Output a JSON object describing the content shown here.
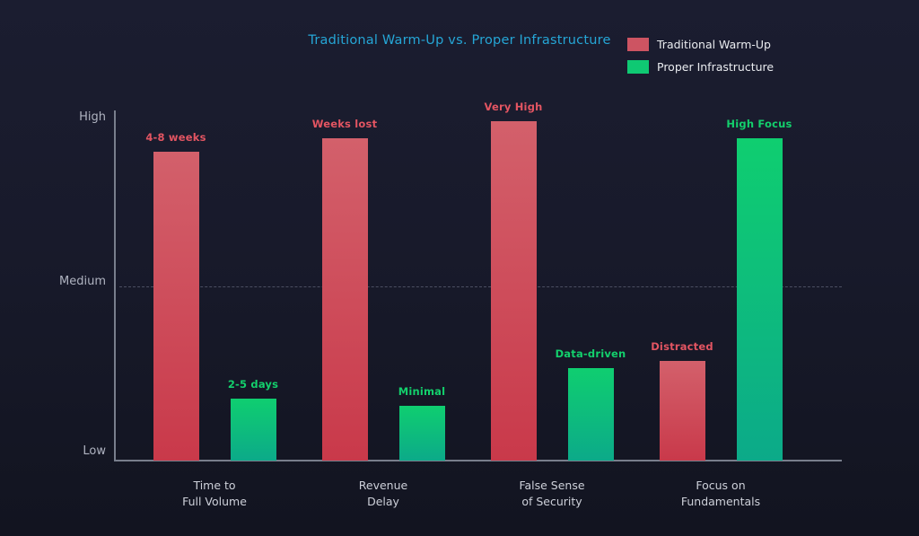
{
  "title": "Traditional Warm-Up vs. Proper Infrastructure",
  "legend": [
    {
      "label": "Traditional Warm-Up",
      "color": "#cd5462"
    },
    {
      "label": "Proper Infrastructure",
      "color": "#0fc973"
    }
  ],
  "colors": {
    "title": "#25a6d6",
    "background_top": "#1b1d30",
    "background_bottom": "#121420",
    "axis": "#787e8c",
    "tick_label": "#afb3c0",
    "category_label": "#cdd0d9",
    "gridline": "#4b4f62"
  },
  "chart_data": {
    "type": "bar",
    "title": "Traditional Warm-Up vs. Proper Infrastructure",
    "categories": [
      [
        "Time to",
        "Full Volume"
      ],
      [
        "Revenue",
        "Delay"
      ],
      [
        "False Sense",
        "of Security"
      ],
      [
        "Focus on",
        "Fundamentals"
      ]
    ],
    "y_ticks": [
      "High",
      "Medium",
      "Low"
    ],
    "ylim": [
      0,
      1
    ],
    "y_scale_note": "Low=0, Medium=0.5, High=1",
    "grid": "single horizontal dashed line at Medium level",
    "legend_position": "top-right",
    "series": [
      {
        "name": "Traditional Warm-Up",
        "values": [
          0.9,
          0.94,
          0.99,
          0.29
        ],
        "value_labels": [
          "4-8 weeks",
          "Weeks lost",
          "Very High",
          "Distracted"
        ],
        "color_top": "#d3606b",
        "color_bottom": "#c9394a",
        "label_color": "#e35562"
      },
      {
        "name": "Proper Infrastructure",
        "values": [
          0.18,
          0.16,
          0.27,
          0.94
        ],
        "value_labels": [
          "2-5 days",
          "Minimal",
          "Data-driven",
          "High Focus"
        ],
        "color_top": "#0fce70",
        "color_bottom": "#0caa89",
        "label_color": "#13d06c"
      }
    ]
  }
}
